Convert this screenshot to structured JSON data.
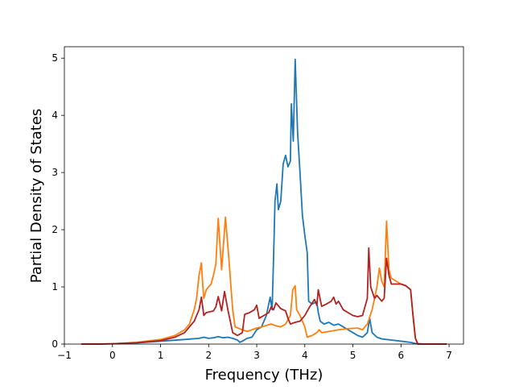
{
  "chart_data": {
    "type": "line",
    "title": "",
    "xlabel": "Frequency (THz)",
    "ylabel": "Partial Density of States",
    "xlim": [
      -1,
      7.3
    ],
    "ylim": [
      0,
      5.2
    ],
    "xticks": [
      -1,
      0,
      1,
      2,
      3,
      4,
      5,
      6,
      7
    ],
    "yticks": [
      0,
      1,
      2,
      3,
      4,
      5
    ],
    "grid": false,
    "legend": "none",
    "series": [
      {
        "color": "#1f77b4",
        "points": [
          [
            -0.65,
            0
          ],
          [
            -0.3,
            0
          ],
          [
            0,
            0.005
          ],
          [
            0.5,
            0.02
          ],
          [
            1.0,
            0.05
          ],
          [
            1.5,
            0.08
          ],
          [
            1.8,
            0.1
          ],
          [
            1.9,
            0.12
          ],
          [
            2.0,
            0.1
          ],
          [
            2.1,
            0.11
          ],
          [
            2.2,
            0.13
          ],
          [
            2.3,
            0.11
          ],
          [
            2.4,
            0.12
          ],
          [
            2.5,
            0.1
          ],
          [
            2.6,
            0.07
          ],
          [
            2.65,
            0.03
          ],
          [
            2.7,
            0.05
          ],
          [
            2.8,
            0.1
          ],
          [
            2.9,
            0.12
          ],
          [
            3.0,
            0.25
          ],
          [
            3.1,
            0.3
          ],
          [
            3.2,
            0.5
          ],
          [
            3.25,
            0.7
          ],
          [
            3.28,
            0.82
          ],
          [
            3.32,
            0.6
          ],
          [
            3.35,
            1.5
          ],
          [
            3.38,
            2.5
          ],
          [
            3.42,
            2.8
          ],
          [
            3.45,
            2.35
          ],
          [
            3.5,
            2.5
          ],
          [
            3.55,
            3.15
          ],
          [
            3.6,
            3.3
          ],
          [
            3.65,
            3.1
          ],
          [
            3.7,
            3.2
          ],
          [
            3.72,
            4.2
          ],
          [
            3.76,
            3.55
          ],
          [
            3.8,
            4.98
          ],
          [
            3.85,
            3.7
          ],
          [
            3.9,
            3.0
          ],
          [
            3.95,
            2.25
          ],
          [
            4.0,
            1.9
          ],
          [
            4.05,
            1.6
          ],
          [
            4.08,
            0.75
          ],
          [
            4.15,
            0.7
          ],
          [
            4.2,
            0.72
          ],
          [
            4.25,
            0.73
          ],
          [
            4.28,
            0.55
          ],
          [
            4.32,
            0.4
          ],
          [
            4.4,
            0.35
          ],
          [
            4.5,
            0.38
          ],
          [
            4.6,
            0.33
          ],
          [
            4.7,
            0.35
          ],
          [
            4.8,
            0.3
          ],
          [
            4.9,
            0.25
          ],
          [
            5.0,
            0.2
          ],
          [
            5.1,
            0.15
          ],
          [
            5.2,
            0.12
          ],
          [
            5.3,
            0.2
          ],
          [
            5.35,
            0.45
          ],
          [
            5.4,
            0.2
          ],
          [
            5.5,
            0.12
          ],
          [
            5.6,
            0.09
          ],
          [
            5.7,
            0.08
          ],
          [
            5.8,
            0.07
          ],
          [
            6.0,
            0.05
          ],
          [
            6.2,
            0.03
          ],
          [
            6.3,
            0.01
          ],
          [
            6.5,
            0
          ],
          [
            6.95,
            0
          ]
        ]
      },
      {
        "color": "#ff7f0e",
        "points": [
          [
            -0.65,
            0
          ],
          [
            -0.3,
            0
          ],
          [
            0,
            0.005
          ],
          [
            0.5,
            0.03
          ],
          [
            1.0,
            0.08
          ],
          [
            1.3,
            0.15
          ],
          [
            1.5,
            0.25
          ],
          [
            1.6,
            0.35
          ],
          [
            1.7,
            0.6
          ],
          [
            1.75,
            0.8
          ],
          [
            1.8,
            1.2
          ],
          [
            1.85,
            1.42
          ],
          [
            1.88,
            1.0
          ],
          [
            1.9,
            0.8
          ],
          [
            1.95,
            0.95
          ],
          [
            2.05,
            1.05
          ],
          [
            2.1,
            1.2
          ],
          [
            2.15,
            1.4
          ],
          [
            2.2,
            2.2
          ],
          [
            2.27,
            1.3
          ],
          [
            2.35,
            2.22
          ],
          [
            2.42,
            1.5
          ],
          [
            2.5,
            0.6
          ],
          [
            2.55,
            0.3
          ],
          [
            2.7,
            0.25
          ],
          [
            2.8,
            0.22
          ],
          [
            3.0,
            0.28
          ],
          [
            3.1,
            0.3
          ],
          [
            3.3,
            0.35
          ],
          [
            3.4,
            0.32
          ],
          [
            3.5,
            0.3
          ],
          [
            3.6,
            0.35
          ],
          [
            3.7,
            0.5
          ],
          [
            3.75,
            0.95
          ],
          [
            3.8,
            1.02
          ],
          [
            3.83,
            0.6
          ],
          [
            3.9,
            0.5
          ],
          [
            4.0,
            0.3
          ],
          [
            4.05,
            0.12
          ],
          [
            4.15,
            0.15
          ],
          [
            4.25,
            0.2
          ],
          [
            4.3,
            0.25
          ],
          [
            4.35,
            0.2
          ],
          [
            4.5,
            0.22
          ],
          [
            4.7,
            0.25
          ],
          [
            4.9,
            0.27
          ],
          [
            5.1,
            0.28
          ],
          [
            5.2,
            0.25
          ],
          [
            5.3,
            0.35
          ],
          [
            5.4,
            0.6
          ],
          [
            5.5,
            1.0
          ],
          [
            5.55,
            1.33
          ],
          [
            5.6,
            1.1
          ],
          [
            5.65,
            1.0
          ],
          [
            5.7,
            2.15
          ],
          [
            5.75,
            1.3
          ],
          [
            5.8,
            1.15
          ],
          [
            6.0,
            1.05
          ],
          [
            6.1,
            1.02
          ],
          [
            6.2,
            0.95
          ],
          [
            6.25,
            0.5
          ],
          [
            6.3,
            0.1
          ],
          [
            6.35,
            0
          ],
          [
            6.95,
            0
          ]
        ]
      },
      {
        "color": "#b22222",
        "points": [
          [
            -0.65,
            0
          ],
          [
            -0.3,
            0
          ],
          [
            0,
            0.005
          ],
          [
            0.5,
            0.025
          ],
          [
            1.0,
            0.06
          ],
          [
            1.3,
            0.12
          ],
          [
            1.5,
            0.2
          ],
          [
            1.7,
            0.4
          ],
          [
            1.8,
            0.6
          ],
          [
            1.85,
            0.82
          ],
          [
            1.9,
            0.5
          ],
          [
            1.95,
            0.55
          ],
          [
            2.1,
            0.58
          ],
          [
            2.15,
            0.65
          ],
          [
            2.2,
            0.83
          ],
          [
            2.27,
            0.58
          ],
          [
            2.33,
            0.92
          ],
          [
            2.4,
            0.6
          ],
          [
            2.45,
            0.4
          ],
          [
            2.5,
            0.2
          ],
          [
            2.6,
            0.15
          ],
          [
            2.7,
            0.2
          ],
          [
            2.75,
            0.52
          ],
          [
            2.85,
            0.55
          ],
          [
            2.95,
            0.6
          ],
          [
            3.0,
            0.68
          ],
          [
            3.05,
            0.45
          ],
          [
            3.15,
            0.5
          ],
          [
            3.25,
            0.55
          ],
          [
            3.3,
            0.65
          ],
          [
            3.35,
            0.6
          ],
          [
            3.4,
            0.72
          ],
          [
            3.5,
            0.62
          ],
          [
            3.6,
            0.58
          ],
          [
            3.65,
            0.45
          ],
          [
            3.7,
            0.35
          ],
          [
            3.8,
            0.38
          ],
          [
            3.9,
            0.4
          ],
          [
            4.0,
            0.5
          ],
          [
            4.1,
            0.65
          ],
          [
            4.2,
            0.78
          ],
          [
            4.25,
            0.68
          ],
          [
            4.28,
            0.95
          ],
          [
            4.35,
            0.66
          ],
          [
            4.45,
            0.7
          ],
          [
            4.55,
            0.75
          ],
          [
            4.6,
            0.82
          ],
          [
            4.65,
            0.7
          ],
          [
            4.7,
            0.75
          ],
          [
            4.8,
            0.6
          ],
          [
            4.9,
            0.55
          ],
          [
            5.0,
            0.5
          ],
          [
            5.1,
            0.48
          ],
          [
            5.2,
            0.5
          ],
          [
            5.3,
            0.8
          ],
          [
            5.33,
            1.68
          ],
          [
            5.37,
            1.0
          ],
          [
            5.45,
            0.8
          ],
          [
            5.5,
            0.85
          ],
          [
            5.6,
            0.75
          ],
          [
            5.65,
            0.8
          ],
          [
            5.7,
            1.5
          ],
          [
            5.75,
            1.2
          ],
          [
            5.8,
            1.05
          ],
          [
            6.0,
            1.05
          ],
          [
            6.1,
            1.02
          ],
          [
            6.2,
            0.95
          ],
          [
            6.25,
            0.5
          ],
          [
            6.3,
            0.1
          ],
          [
            6.35,
            0
          ],
          [
            6.95,
            0
          ]
        ]
      }
    ]
  }
}
